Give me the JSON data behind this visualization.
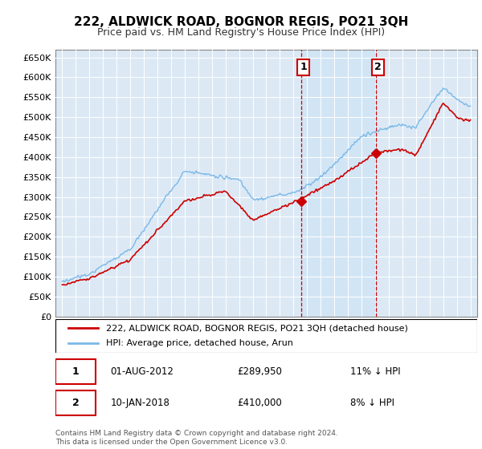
{
  "title": "222, ALDWICK ROAD, BOGNOR REGIS, PO21 3QH",
  "subtitle": "Price paid vs. HM Land Registry's House Price Index (HPI)",
  "hpi_color": "#7ab8e8",
  "property_color": "#cc0000",
  "marker_color": "#cc0000",
  "shade_color": "#d0e4f5",
  "background_color": "#ffffff",
  "plot_bg_color": "#dce9f5",
  "grid_color": "#ffffff",
  "ylim": [
    0,
    670000
  ],
  "yticks": [
    0,
    50000,
    100000,
    150000,
    200000,
    250000,
    300000,
    350000,
    400000,
    450000,
    500000,
    550000,
    600000,
    650000
  ],
  "legend_label_property": "222, ALDWICK ROAD, BOGNOR REGIS, PO21 3QH (detached house)",
  "legend_label_hpi": "HPI: Average price, detached house, Arun",
  "sale1_date": "01-AUG-2012",
  "sale1_price": 289950,
  "sale1_label": "11% ↓ HPI",
  "sale2_date": "10-JAN-2018",
  "sale2_price": 410000,
  "sale2_label": "8% ↓ HPI",
  "footnote": "Contains HM Land Registry data © Crown copyright and database right 2024.\nThis data is licensed under the Open Government Licence v3.0.",
  "sale1_x": 2012.583,
  "sale2_x": 2018.033,
  "xmin": 1995.0,
  "xmax": 2025.0
}
